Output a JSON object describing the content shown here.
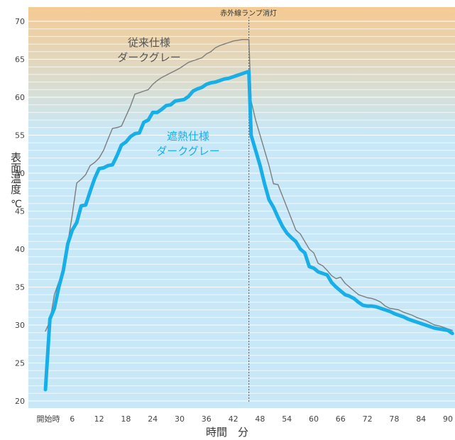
{
  "chart_data": {
    "type": "line",
    "ylabel": "表面温度",
    "yunit": "℃",
    "xlabel": "時間　分",
    "ylim": [
      20,
      70
    ],
    "yticks": [
      20,
      25,
      30,
      35,
      40,
      45,
      50,
      55,
      60,
      65,
      70
    ],
    "xlim": [
      0,
      92
    ],
    "xticks": [
      {
        "x": 0,
        "label": "開始時"
      },
      {
        "x": 6,
        "label": "6"
      },
      {
        "x": 12,
        "label": "12"
      },
      {
        "x": 18,
        "label": "18"
      },
      {
        "x": 24,
        "label": "24"
      },
      {
        "x": 30,
        "label": "30"
      },
      {
        "x": 36,
        "label": "36"
      },
      {
        "x": 42,
        "label": "42"
      },
      {
        "x": 48,
        "label": "48"
      },
      {
        "x": 54,
        "label": "54"
      },
      {
        "x": 60,
        "label": "60"
      },
      {
        "x": 66,
        "label": "66"
      },
      {
        "x": 72,
        "label": "72"
      },
      {
        "x": 78,
        "label": "78"
      },
      {
        "x": 84,
        "label": "84"
      },
      {
        "x": 90,
        "label": "90"
      }
    ],
    "annotation": {
      "label": "赤外線ランプ消灯",
      "x": 45.5
    },
    "background": {
      "top_color": "#f7c98d",
      "bottom_color": "#c8e8f8",
      "gradient_range": [
        55,
        70
      ]
    },
    "grid": true,
    "series": [
      {
        "name": "従来仕様\nダークグレー",
        "color": "#7d7d7d",
        "points": [
          [
            0,
            29.2
          ],
          [
            1,
            30.5
          ],
          [
            2,
            34
          ],
          [
            3,
            35.7
          ],
          [
            4,
            37
          ],
          [
            5,
            40.8
          ],
          [
            6,
            44.5
          ],
          [
            7,
            48.7
          ],
          [
            8,
            49.2
          ],
          [
            9,
            49.8
          ],
          [
            10,
            51
          ],
          [
            11,
            51.4
          ],
          [
            12,
            52
          ],
          [
            13,
            53
          ],
          [
            14,
            54.5
          ],
          [
            15,
            55.9
          ],
          [
            16,
            56
          ],
          [
            17,
            56.2
          ],
          [
            18,
            57.5
          ],
          [
            19,
            58.8
          ],
          [
            20,
            60.4
          ],
          [
            21,
            60.6
          ],
          [
            22,
            60.8
          ],
          [
            23,
            61
          ],
          [
            24,
            61.7
          ],
          [
            25,
            62.2
          ],
          [
            26,
            62.6
          ],
          [
            27,
            62.9
          ],
          [
            28,
            63.2
          ],
          [
            29,
            63.5
          ],
          [
            30,
            63.8
          ],
          [
            31,
            64.2
          ],
          [
            32,
            64.6
          ],
          [
            33,
            64.8
          ],
          [
            34,
            65
          ],
          [
            35,
            65.2
          ],
          [
            36,
            65.7
          ],
          [
            37,
            66
          ],
          [
            38,
            66.5
          ],
          [
            39,
            66.8
          ],
          [
            40,
            67
          ],
          [
            41,
            67.2
          ],
          [
            42,
            67.4
          ],
          [
            43,
            67.5
          ],
          [
            44,
            67.6
          ],
          [
            45.5,
            67.6
          ],
          [
            46,
            59.5
          ],
          [
            47,
            57
          ],
          [
            48,
            55
          ],
          [
            49,
            53
          ],
          [
            50,
            51
          ],
          [
            51,
            48.6
          ],
          [
            52,
            48.5
          ],
          [
            53,
            47
          ],
          [
            54,
            45.5
          ],
          [
            55,
            44
          ],
          [
            56,
            42.5
          ],
          [
            57,
            42
          ],
          [
            58,
            41
          ],
          [
            59,
            40
          ],
          [
            60,
            39.5
          ],
          [
            61,
            38.1
          ],
          [
            62,
            37.8
          ],
          [
            63,
            37.2
          ],
          [
            64,
            36.5
          ],
          [
            65,
            36.1
          ],
          [
            66,
            36.3
          ],
          [
            67,
            35.5
          ],
          [
            68,
            35
          ],
          [
            69,
            34.5
          ],
          [
            70,
            34
          ],
          [
            71,
            33.8
          ],
          [
            72,
            33.6
          ],
          [
            73,
            33.5
          ],
          [
            74,
            33.3
          ],
          [
            75,
            33
          ],
          [
            76,
            32.5
          ],
          [
            77,
            32.2
          ],
          [
            78,
            32.1
          ],
          [
            79,
            32
          ],
          [
            80,
            31.7
          ],
          [
            81,
            31.5
          ],
          [
            82,
            31.3
          ],
          [
            83,
            31
          ],
          [
            84,
            30.8
          ],
          [
            85,
            30.6
          ],
          [
            86,
            30.3
          ],
          [
            87,
            30
          ],
          [
            88,
            29.9
          ],
          [
            89,
            29.7
          ],
          [
            90,
            29.5
          ],
          [
            91,
            29.3
          ]
        ]
      },
      {
        "name": "遮熱仕様\nダークグレー",
        "color": "#18aee8",
        "points": [
          [
            0,
            21.5
          ],
          [
            1,
            30.8
          ],
          [
            2,
            32.2
          ],
          [
            3,
            35
          ],
          [
            4,
            37.2
          ],
          [
            5,
            40.7
          ],
          [
            6,
            42.5
          ],
          [
            7,
            43.5
          ],
          [
            8,
            45.7
          ],
          [
            9,
            45.8
          ],
          [
            10,
            47.6
          ],
          [
            11,
            49.3
          ],
          [
            12,
            50.6
          ],
          [
            13,
            50.7
          ],
          [
            14,
            51
          ],
          [
            15,
            51.1
          ],
          [
            16,
            52.3
          ],
          [
            17,
            53.7
          ],
          [
            18,
            54.1
          ],
          [
            19,
            54.8
          ],
          [
            20,
            55.2
          ],
          [
            21,
            55.3
          ],
          [
            22,
            56.7
          ],
          [
            23,
            57
          ],
          [
            24,
            58
          ],
          [
            25,
            58
          ],
          [
            26,
            58.4
          ],
          [
            27,
            58.9
          ],
          [
            28,
            59
          ],
          [
            29,
            59.5
          ],
          [
            30,
            59.6
          ],
          [
            31,
            59.7
          ],
          [
            32,
            60.1
          ],
          [
            33,
            60.8
          ],
          [
            34,
            61.1
          ],
          [
            35,
            61.3
          ],
          [
            36,
            61.7
          ],
          [
            37,
            61.9
          ],
          [
            38,
            62
          ],
          [
            39,
            62.2
          ],
          [
            40,
            62.4
          ],
          [
            41,
            62.5
          ],
          [
            42,
            62.7
          ],
          [
            43,
            62.9
          ],
          [
            44,
            63.1
          ],
          [
            45.5,
            63.4
          ],
          [
            46,
            55
          ],
          [
            47,
            53
          ],
          [
            48,
            51
          ],
          [
            49,
            48.6
          ],
          [
            50,
            46.5
          ],
          [
            51,
            45.5
          ],
          [
            52,
            44.2
          ],
          [
            53,
            43
          ],
          [
            54,
            42.1
          ],
          [
            55,
            41.5
          ],
          [
            56,
            41
          ],
          [
            57,
            40
          ],
          [
            58,
            39.5
          ],
          [
            59,
            37.7
          ],
          [
            60,
            37.5
          ],
          [
            61,
            37
          ],
          [
            62,
            36.8
          ],
          [
            63,
            36.6
          ],
          [
            64,
            35.6
          ],
          [
            65,
            35
          ],
          [
            66,
            34.5
          ],
          [
            67,
            34
          ],
          [
            68,
            33.8
          ],
          [
            69,
            33.5
          ],
          [
            70,
            33
          ],
          [
            71,
            32.6
          ],
          [
            72,
            32.5
          ],
          [
            73,
            32.5
          ],
          [
            74,
            32.4
          ],
          [
            75,
            32.2
          ],
          [
            76,
            32
          ],
          [
            77,
            31.8
          ],
          [
            78,
            31.5
          ],
          [
            79,
            31.3
          ],
          [
            80,
            31.1
          ],
          [
            81,
            30.8
          ],
          [
            82,
            30.6
          ],
          [
            83,
            30.4
          ],
          [
            84,
            30.2
          ],
          [
            85,
            30
          ],
          [
            86,
            29.8
          ],
          [
            87,
            29.6
          ],
          [
            88,
            29.5
          ],
          [
            89,
            29.4
          ],
          [
            90,
            29.3
          ],
          [
            91,
            28.9
          ]
        ]
      }
    ]
  }
}
